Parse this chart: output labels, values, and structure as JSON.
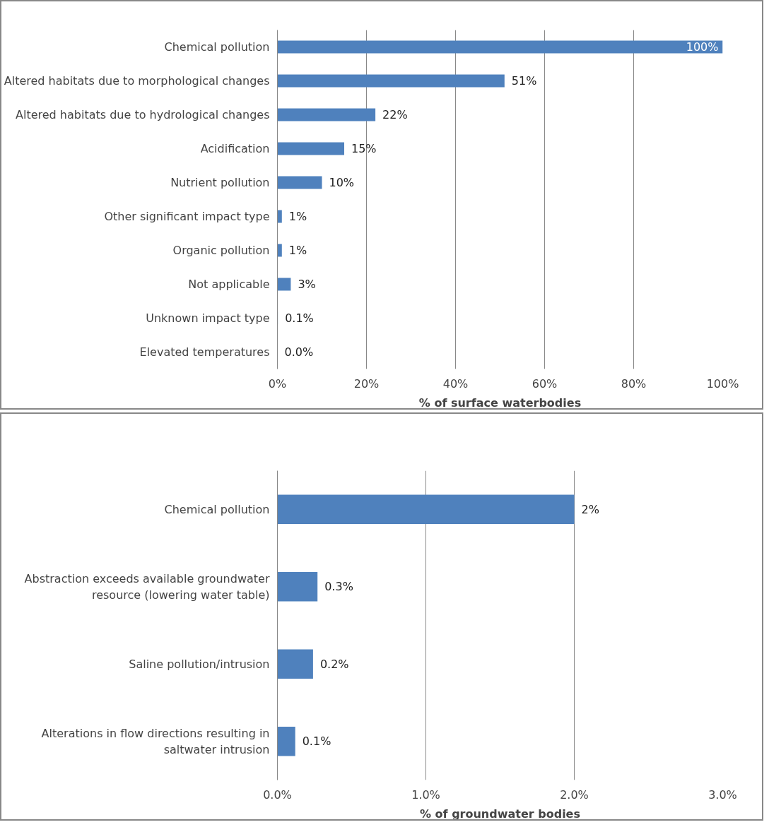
{
  "chart_data": [
    {
      "type": "bar",
      "orientation": "horizontal",
      "xlabel": "% of surface waterbodies",
      "categories": [
        "Chemical pollution",
        "Altered habitats due to morphological changes",
        "Altered habitats due to hydrological changes",
        "Acidification",
        "Nutrient pollution",
        "Other significant impact type",
        "Organic pollution",
        "Not applicable",
        "Unknown impact type",
        "Elevated temperatures"
      ],
      "values": [
        100,
        51,
        22,
        15,
        10,
        1,
        1,
        3,
        0.1,
        0.0
      ],
      "value_labels": [
        "100%",
        "51%",
        "22%",
        "15%",
        "10%",
        "1%",
        "1%",
        "3%",
        "0.1%",
        "0.0%"
      ],
      "color": "#4f81bd",
      "xlim": [
        0,
        100
      ],
      "xticks": [
        {
          "value": 0,
          "label": "0%"
        },
        {
          "value": 20,
          "label": "20%"
        },
        {
          "value": 40,
          "label": "40%"
        },
        {
          "value": 60,
          "label": "60%"
        },
        {
          "value": 80,
          "label": "80%"
        },
        {
          "value": 100,
          "label": "100%"
        }
      ],
      "grid": "x",
      "legend": false
    },
    {
      "type": "bar",
      "orientation": "horizontal",
      "xlabel": "% of groundwater bodies",
      "categories": [
        "Chemical pollution",
        "Abstraction exceeds available groundwater resource (lowering water table)",
        "Saline pollution/intrusion",
        "Alterations in flow directions resulting in saltwater intrusion"
      ],
      "values": [
        2.0,
        0.27,
        0.24,
        0.12
      ],
      "value_labels": [
        "2%",
        "0.3%",
        "0.2%",
        "0.1%"
      ],
      "color": "#4f81bd",
      "xlim": [
        0,
        3
      ],
      "xticks": [
        {
          "value": 0,
          "label": "0.0%"
        },
        {
          "value": 1,
          "label": "1.0%"
        },
        {
          "value": 2,
          "label": "2.0%"
        },
        {
          "value": 3,
          "label": "3.0%"
        }
      ],
      "grid": "x",
      "legend": false
    }
  ]
}
